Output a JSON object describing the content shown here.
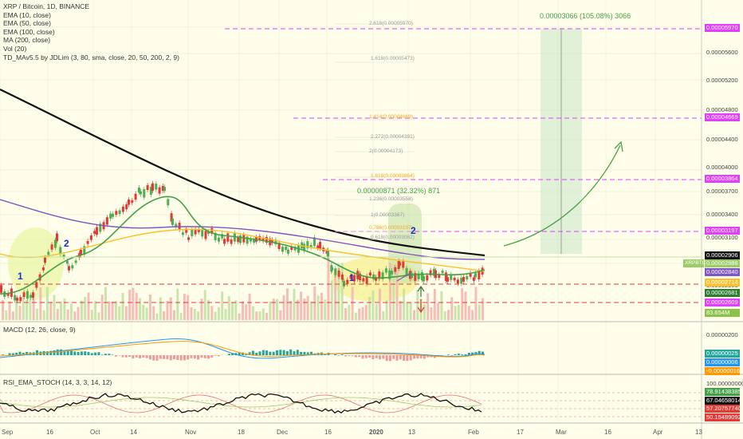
{
  "symbol_title": "XRP / Bitcoin, 1D, BINANCE",
  "indicators": [
    "EMA (10, close)",
    "EMA (50, close)",
    "EMA (100, close)",
    "MA (200, close)",
    "Vol (20)",
    "TD_MAv5.5 by JDLim (3, 80, sma, close, 20, 50, 200, 2, 9)"
  ],
  "macd_legend": "MACD (12, 26, close, 9)",
  "rsi_legend": "RSI_EMA_STOCH (14, 3, 3, 14, 12)",
  "price_axis_ticks": [
    "0.00005600",
    "0.00005200",
    "0.00004800",
    "0.00004400",
    "0.00004000",
    "0.00003700",
    "0.00003400",
    "0.00003100",
    "0.00002800",
    "0.00002500"
  ],
  "price_badges": [
    {
      "value": "0.00005970",
      "color": "#E040FB"
    },
    {
      "value": "0.00004669",
      "color": "#E040FB"
    },
    {
      "value": "0.00003864",
      "color": "#E040FB"
    },
    {
      "value": "0.00003197",
      "color": "#E040FB"
    },
    {
      "value": "0.00002906",
      "color": "#111111"
    },
    {
      "value": "0.00002886",
      "color": "#9CCC65"
    },
    {
      "value": "0.00002840",
      "color": "#7E57C2"
    },
    {
      "value": "0.00002714",
      "color": "#FBC02D"
    },
    {
      "value": "0.00002681",
      "color": "#2E7D32"
    },
    {
      "value": "0.00002609",
      "color": "#E040FB"
    },
    {
      "value": "83.654M",
      "color": "#8BC34A"
    }
  ],
  "ticker_badge": "XRPBTC",
  "macd_axis": [
    "0.00000200",
    "0.00000025",
    "0.00000006",
    "-0.00000016"
  ],
  "rsi_axis": [
    "100.00000000",
    "78.91438385",
    "67.04658014",
    "57.20757740",
    "50.15489092"
  ],
  "x_ticks": [
    "Sep",
    "16",
    "Oct",
    "14",
    "Nov",
    "18",
    "Dec",
    "16",
    "2020",
    "13",
    "Feb",
    "17",
    "Mar",
    "16",
    "Apr",
    "13"
  ],
  "fib_labels": [
    "2.618(0.00005970)",
    "1.618(0.00005473)",
    "1.414(0.00004669)",
    "2.272(0.00004391)",
    "2(0.00004173)",
    "1.618(0.00003864)",
    "1.236(0.00003558)",
    "1(0.00003367)",
    "0.786(0.00003197)",
    "0.618(0.00003062)"
  ],
  "annotations": {
    "target_measure": "0.00003066 (105.08%) 3066",
    "mid_measure": "0.00000871 (32.32%) 871",
    "wave1_left": "1",
    "wave2_left": "2",
    "wave1_right": "1",
    "wave2_right": "2"
  },
  "colors": {
    "background": "#FFFEEA",
    "ma200": "#111111",
    "ema100": "#7E57C2",
    "ema50": "#FBC02D",
    "ema10": "#43A047",
    "bull": "#4CAF50",
    "bear": "#E53935",
    "target_line": "#E040FB",
    "support": "#E53935"
  }
}
